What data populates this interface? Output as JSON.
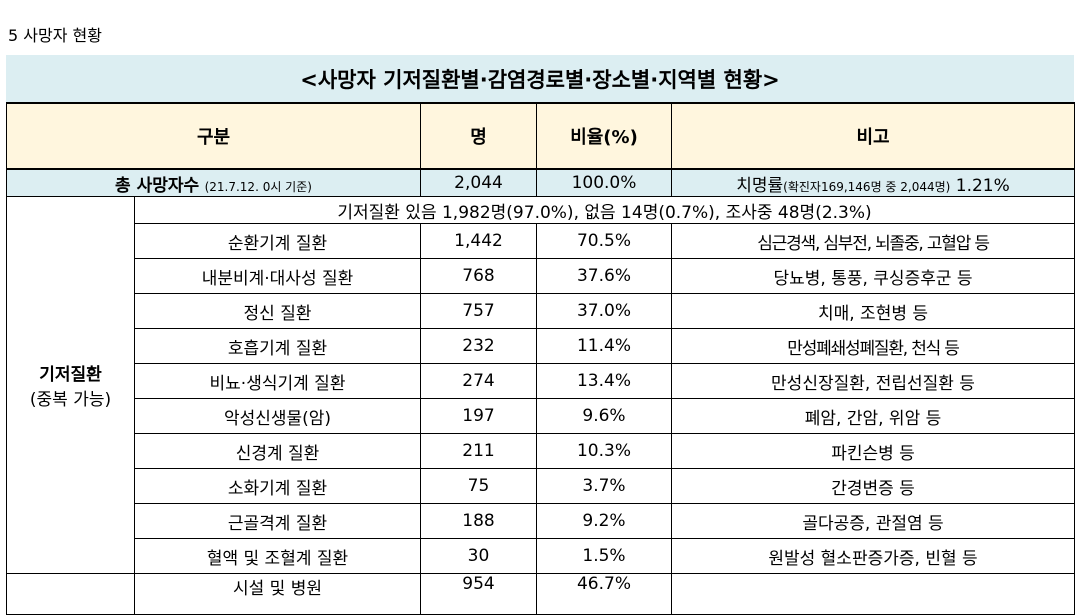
{
  "section_label": "5 사망자 현황",
  "title": "<사망자 기저질환별·감염경로별·장소별·지역별 현황>",
  "header": {
    "division": "구분",
    "count": "명",
    "ratio": "비율(%)",
    "remark": "비고"
  },
  "total": {
    "label": "총 사망자수",
    "label_note": "(21.7.12. 0시 기준)",
    "count": "2,044",
    "ratio": "100.0%",
    "remark_main": "치명률",
    "remark_note": "(확진자169,146명 중 2,044명)",
    "remark_value": "1.21%"
  },
  "underlying": {
    "category": "기저질환",
    "category_sub": "(중복 가능)",
    "summary": "기저질환 있음 1,982명(97.0%), 없음 14명(0.7%), 조사중 48명(2.3%)",
    "rows": [
      {
        "name": "순환기계 질환",
        "count": "1,442",
        "ratio": "70.5%",
        "remark": "심근경색, 심부전, 뇌졸중, 고혈압 등"
      },
      {
        "name": "내분비계·대사성 질환",
        "count": "768",
        "ratio": "37.6%",
        "remark": "당뇨병, 통풍, 쿠싱증후군 등"
      },
      {
        "name": "정신 질환",
        "count": "757",
        "ratio": "37.0%",
        "remark": "치매, 조현병 등"
      },
      {
        "name": "호흡기계 질환",
        "count": "232",
        "ratio": "11.4%",
        "remark": "만성폐쇄성폐질환, 천식 등"
      },
      {
        "name": "비뇨·생식기계 질환",
        "count": "274",
        "ratio": "13.4%",
        "remark": "만성신장질환, 전립선질환 등"
      },
      {
        "name": "악성신생물(암)",
        "count": "197",
        "ratio": "9.6%",
        "remark": "폐암, 간암, 위암 등"
      },
      {
        "name": "신경계 질환",
        "count": "211",
        "ratio": "10.3%",
        "remark": "파킨슨병 등"
      },
      {
        "name": "소화기계 질환",
        "count": "75",
        "ratio": "3.7%",
        "remark": "간경변증 등"
      },
      {
        "name": "근골격계 질환",
        "count": "188",
        "ratio": "9.2%",
        "remark": "골다공증, 관절염 등"
      },
      {
        "name": "혈액 및 조혈계 질환",
        "count": "30",
        "ratio": "1.5%",
        "remark": "원발성 혈소판증가증, 빈혈 등"
      }
    ]
  },
  "next_row": {
    "name": "시설 및 병원",
    "count": "954",
    "ratio": "46.7%"
  }
}
